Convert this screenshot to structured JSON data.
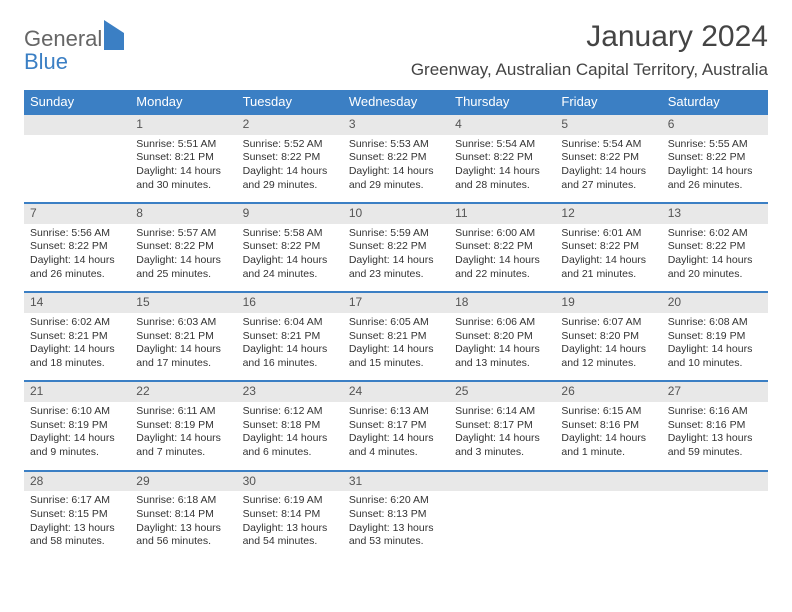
{
  "logo": {
    "text1": "General",
    "text2": "Blue"
  },
  "title": "January 2024",
  "location": "Greenway, Australian Capital Territory, Australia",
  "colors": {
    "header_bg": "#3b7fc4",
    "daynum_bg": "#e8e8e8",
    "border": "#3b7fc4"
  },
  "day_headers": [
    "Sunday",
    "Monday",
    "Tuesday",
    "Wednesday",
    "Thursday",
    "Friday",
    "Saturday"
  ],
  "weeks": [
    {
      "nums": [
        "",
        "1",
        "2",
        "3",
        "4",
        "5",
        "6"
      ],
      "cells": [
        null,
        {
          "sunrise": "Sunrise: 5:51 AM",
          "sunset": "Sunset: 8:21 PM",
          "day1": "Daylight: 14 hours",
          "day2": "and 30 minutes."
        },
        {
          "sunrise": "Sunrise: 5:52 AM",
          "sunset": "Sunset: 8:22 PM",
          "day1": "Daylight: 14 hours",
          "day2": "and 29 minutes."
        },
        {
          "sunrise": "Sunrise: 5:53 AM",
          "sunset": "Sunset: 8:22 PM",
          "day1": "Daylight: 14 hours",
          "day2": "and 29 minutes."
        },
        {
          "sunrise": "Sunrise: 5:54 AM",
          "sunset": "Sunset: 8:22 PM",
          "day1": "Daylight: 14 hours",
          "day2": "and 28 minutes."
        },
        {
          "sunrise": "Sunrise: 5:54 AM",
          "sunset": "Sunset: 8:22 PM",
          "day1": "Daylight: 14 hours",
          "day2": "and 27 minutes."
        },
        {
          "sunrise": "Sunrise: 5:55 AM",
          "sunset": "Sunset: 8:22 PM",
          "day1": "Daylight: 14 hours",
          "day2": "and 26 minutes."
        }
      ]
    },
    {
      "nums": [
        "7",
        "8",
        "9",
        "10",
        "11",
        "12",
        "13"
      ],
      "cells": [
        {
          "sunrise": "Sunrise: 5:56 AM",
          "sunset": "Sunset: 8:22 PM",
          "day1": "Daylight: 14 hours",
          "day2": "and 26 minutes."
        },
        {
          "sunrise": "Sunrise: 5:57 AM",
          "sunset": "Sunset: 8:22 PM",
          "day1": "Daylight: 14 hours",
          "day2": "and 25 minutes."
        },
        {
          "sunrise": "Sunrise: 5:58 AM",
          "sunset": "Sunset: 8:22 PM",
          "day1": "Daylight: 14 hours",
          "day2": "and 24 minutes."
        },
        {
          "sunrise": "Sunrise: 5:59 AM",
          "sunset": "Sunset: 8:22 PM",
          "day1": "Daylight: 14 hours",
          "day2": "and 23 minutes."
        },
        {
          "sunrise": "Sunrise: 6:00 AM",
          "sunset": "Sunset: 8:22 PM",
          "day1": "Daylight: 14 hours",
          "day2": "and 22 minutes."
        },
        {
          "sunrise": "Sunrise: 6:01 AM",
          "sunset": "Sunset: 8:22 PM",
          "day1": "Daylight: 14 hours",
          "day2": "and 21 minutes."
        },
        {
          "sunrise": "Sunrise: 6:02 AM",
          "sunset": "Sunset: 8:22 PM",
          "day1": "Daylight: 14 hours",
          "day2": "and 20 minutes."
        }
      ]
    },
    {
      "nums": [
        "14",
        "15",
        "16",
        "17",
        "18",
        "19",
        "20"
      ],
      "cells": [
        {
          "sunrise": "Sunrise: 6:02 AM",
          "sunset": "Sunset: 8:21 PM",
          "day1": "Daylight: 14 hours",
          "day2": "and 18 minutes."
        },
        {
          "sunrise": "Sunrise: 6:03 AM",
          "sunset": "Sunset: 8:21 PM",
          "day1": "Daylight: 14 hours",
          "day2": "and 17 minutes."
        },
        {
          "sunrise": "Sunrise: 6:04 AM",
          "sunset": "Sunset: 8:21 PM",
          "day1": "Daylight: 14 hours",
          "day2": "and 16 minutes."
        },
        {
          "sunrise": "Sunrise: 6:05 AM",
          "sunset": "Sunset: 8:21 PM",
          "day1": "Daylight: 14 hours",
          "day2": "and 15 minutes."
        },
        {
          "sunrise": "Sunrise: 6:06 AM",
          "sunset": "Sunset: 8:20 PM",
          "day1": "Daylight: 14 hours",
          "day2": "and 13 minutes."
        },
        {
          "sunrise": "Sunrise: 6:07 AM",
          "sunset": "Sunset: 8:20 PM",
          "day1": "Daylight: 14 hours",
          "day2": "and 12 minutes."
        },
        {
          "sunrise": "Sunrise: 6:08 AM",
          "sunset": "Sunset: 8:19 PM",
          "day1": "Daylight: 14 hours",
          "day2": "and 10 minutes."
        }
      ]
    },
    {
      "nums": [
        "21",
        "22",
        "23",
        "24",
        "25",
        "26",
        "27"
      ],
      "cells": [
        {
          "sunrise": "Sunrise: 6:10 AM",
          "sunset": "Sunset: 8:19 PM",
          "day1": "Daylight: 14 hours",
          "day2": "and 9 minutes."
        },
        {
          "sunrise": "Sunrise: 6:11 AM",
          "sunset": "Sunset: 8:19 PM",
          "day1": "Daylight: 14 hours",
          "day2": "and 7 minutes."
        },
        {
          "sunrise": "Sunrise: 6:12 AM",
          "sunset": "Sunset: 8:18 PM",
          "day1": "Daylight: 14 hours",
          "day2": "and 6 minutes."
        },
        {
          "sunrise": "Sunrise: 6:13 AM",
          "sunset": "Sunset: 8:17 PM",
          "day1": "Daylight: 14 hours",
          "day2": "and 4 minutes."
        },
        {
          "sunrise": "Sunrise: 6:14 AM",
          "sunset": "Sunset: 8:17 PM",
          "day1": "Daylight: 14 hours",
          "day2": "and 3 minutes."
        },
        {
          "sunrise": "Sunrise: 6:15 AM",
          "sunset": "Sunset: 8:16 PM",
          "day1": "Daylight: 14 hours",
          "day2": "and 1 minute."
        },
        {
          "sunrise": "Sunrise: 6:16 AM",
          "sunset": "Sunset: 8:16 PM",
          "day1": "Daylight: 13 hours",
          "day2": "and 59 minutes."
        }
      ]
    },
    {
      "nums": [
        "28",
        "29",
        "30",
        "31",
        "",
        "",
        ""
      ],
      "cells": [
        {
          "sunrise": "Sunrise: 6:17 AM",
          "sunset": "Sunset: 8:15 PM",
          "day1": "Daylight: 13 hours",
          "day2": "and 58 minutes."
        },
        {
          "sunrise": "Sunrise: 6:18 AM",
          "sunset": "Sunset: 8:14 PM",
          "day1": "Daylight: 13 hours",
          "day2": "and 56 minutes."
        },
        {
          "sunrise": "Sunrise: 6:19 AM",
          "sunset": "Sunset: 8:14 PM",
          "day1": "Daylight: 13 hours",
          "day2": "and 54 minutes."
        },
        {
          "sunrise": "Sunrise: 6:20 AM",
          "sunset": "Sunset: 8:13 PM",
          "day1": "Daylight: 13 hours",
          "day2": "and 53 minutes."
        },
        null,
        null,
        null
      ]
    }
  ]
}
